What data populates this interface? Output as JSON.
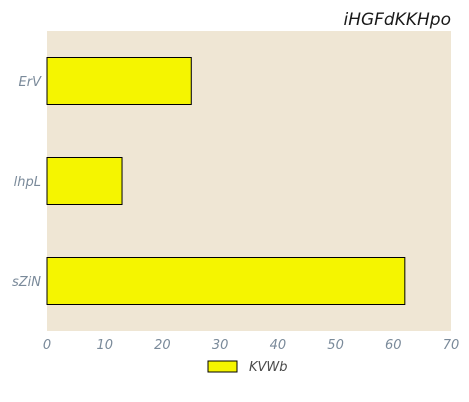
{
  "chart_data": {
    "type": "bar",
    "orientation": "horizontal",
    "title": "iHGFdKKHpo",
    "xlabel": "",
    "ylabel": "",
    "categories": [
      "ErV",
      "lhpL",
      "sZiN"
    ],
    "series": [
      {
        "name": "KVWb",
        "values": [
          25,
          13,
          62
        ]
      }
    ],
    "xlim": [
      0,
      70
    ],
    "xticks": [
      0,
      10,
      20,
      30,
      40,
      50,
      60,
      70
    ],
    "grid": false,
    "legend": "bottom-center",
    "colors": {
      "bar": "#f5f500",
      "bar_edge": "#000000",
      "plot_bg": "#efe6d4"
    }
  }
}
